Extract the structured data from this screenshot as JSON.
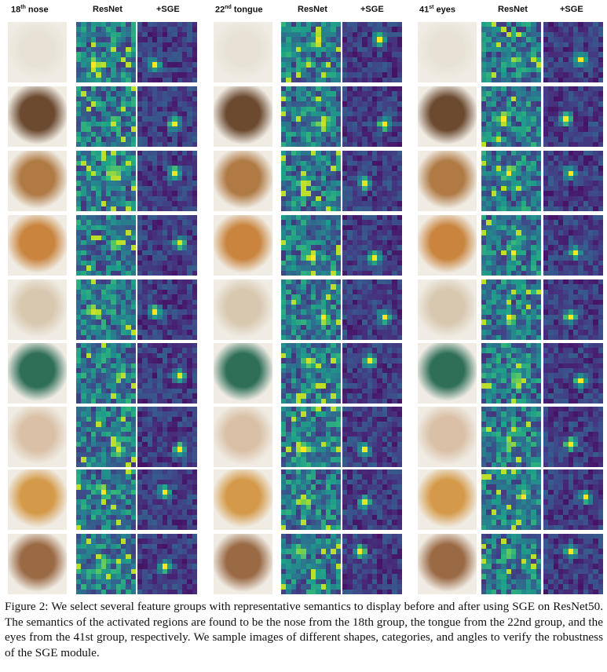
{
  "figure": {
    "groups": [
      {
        "label_num": "18",
        "label_sup": "th",
        "label_word": "nose",
        "col1": "ResNet",
        "col2": "+SGE"
      },
      {
        "label_num": "22",
        "label_sup": "nd",
        "label_word": "tongue",
        "col1": "ResNet",
        "col2": "+SGE"
      },
      {
        "label_num": "41",
        "label_sup": "st",
        "label_word": "eyes",
        "col1": "ResNet",
        "col2": "+SGE"
      }
    ],
    "rows": 9,
    "colormap": "viridis",
    "photo_colors": [
      "#e8e2d6",
      "#6b4a30",
      "#b07a45",
      "#c9843e",
      "#d8c8b0",
      "#2f6f58",
      "#d9c0a6",
      "#d49a4a",
      "#9a6a45"
    ],
    "caption": "Figure 2: We select several feature groups with representative semantics to display before and after using SGE on ResNet50. The semantics of the activated regions are found to be the nose from the 18th group, the tongue from the 22nd group, and the eyes from the 41st group, respectively. We sample images of different shapes, categories, and angles to verify the robustness of the SGE module."
  }
}
